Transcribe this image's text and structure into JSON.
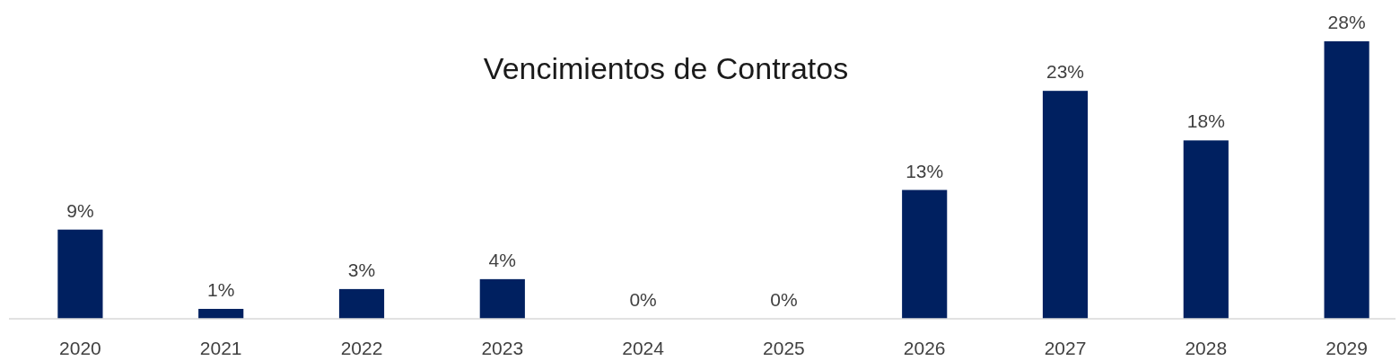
{
  "chart_data": {
    "type": "bar",
    "title": "Vencimientos de Contratos",
    "categories": [
      "2020",
      "2021",
      "2022",
      "2023",
      "2024",
      "2025",
      "2026",
      "2027",
      "2028",
      "2029"
    ],
    "values": [
      9,
      1,
      3,
      4,
      0,
      0,
      13,
      23,
      18,
      28
    ],
    "value_labels": [
      "9%",
      "1%",
      "3%",
      "4%",
      "0%",
      "0%",
      "13%",
      "23%",
      "18%",
      "28%"
    ],
    "color": "#002060"
  }
}
